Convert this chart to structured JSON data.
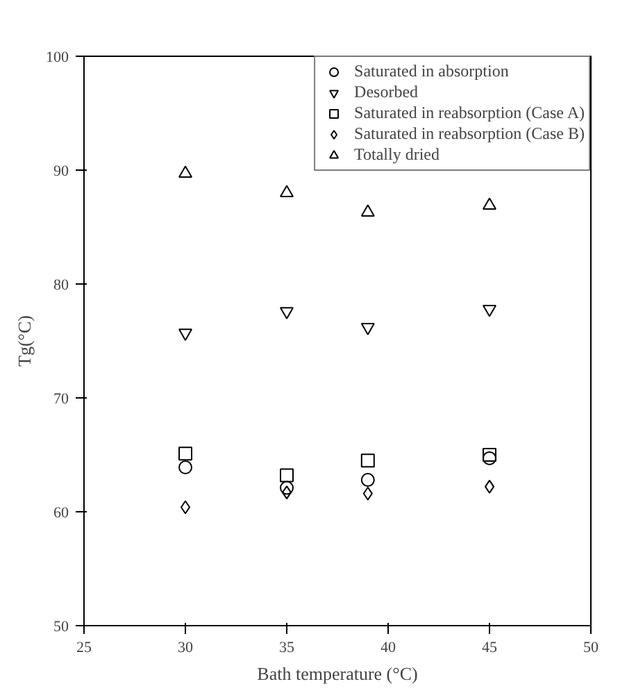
{
  "chart_data": {
    "type": "scatter",
    "xlabel": "Bath temperature (°C)",
    "ylabel": "Tg(°C)",
    "xlim": [
      25,
      50
    ],
    "xticks": [
      25,
      30,
      35,
      40,
      45,
      50
    ],
    "ylim": [
      50,
      100
    ],
    "yticks": [
      50,
      60,
      70,
      80,
      90,
      100
    ],
    "grid": false,
    "legend": "top right",
    "series": [
      {
        "name": "Saturated in absorption",
        "color": "#000000",
        "marker": "circle",
        "x": [
          30,
          35,
          39,
          45
        ],
        "values": [
          63.9,
          62.1,
          62.8,
          64.7
        ]
      },
      {
        "name": "Desorbed",
        "color": "#000000",
        "x": [
          30,
          35,
          39,
          45
        ],
        "values": [
          75.7,
          77.6,
          76.2,
          77.8
        ]
      },
      {
        "name": "Saturated in reabsorption (Case A)",
        "color": "#000000",
        "marker": "square",
        "x": [
          30,
          35,
          39,
          45
        ],
        "values": [
          65.1,
          63.2,
          64.5,
          65.0
        ]
      },
      {
        "name": "Saturated in reabsorption (Case B)",
        "color": "#000000",
        "marker": "diamond",
        "x": [
          30,
          35,
          39,
          45
        ],
        "values": [
          60.4,
          61.7,
          61.6,
          62.2
        ]
      },
      {
        "name": "Totally dried",
        "color": "#000000",
        "marker": "triangle",
        "x": [
          30,
          35,
          39,
          45
        ],
        "values": [
          89.7,
          88.0,
          86.3,
          86.9
        ]
      }
    ]
  }
}
